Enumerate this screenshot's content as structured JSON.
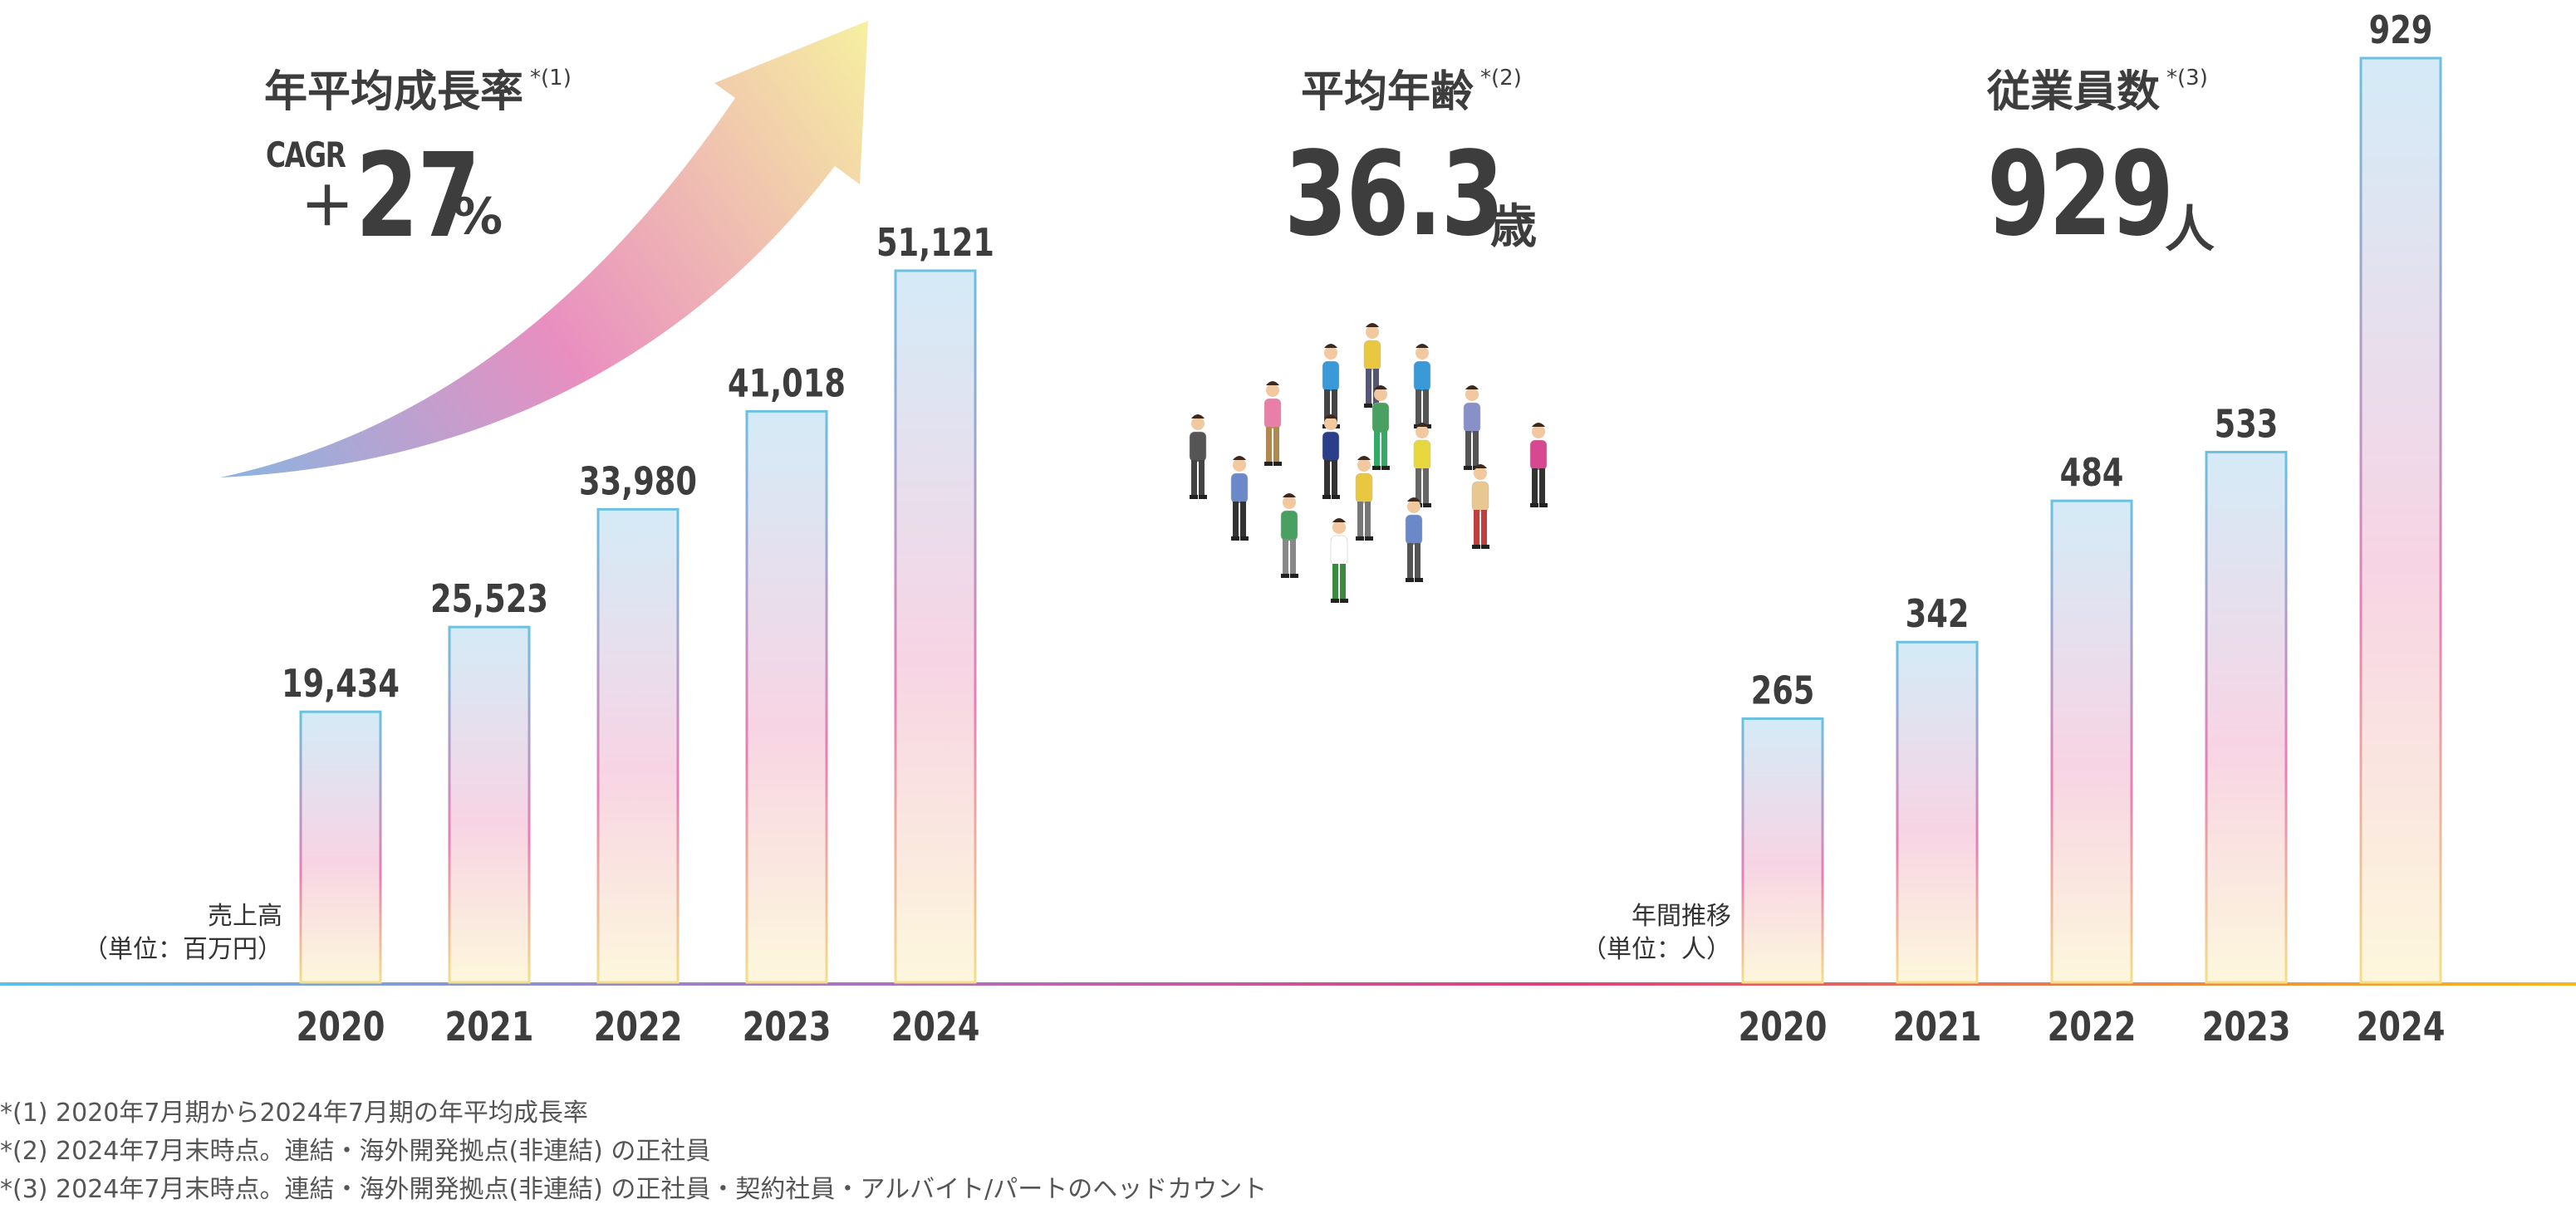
{
  "kpis": {
    "cagr": {
      "title": "年平均成長率",
      "note_ref": "*(1)",
      "prefix": "CAGR",
      "sign": "＋",
      "value": "27",
      "unit": "%"
    },
    "age": {
      "title": "平均年齢",
      "note_ref": "*(2)",
      "value": "36.3",
      "unit": "歳"
    },
    "employees": {
      "title": "従業員数",
      "note_ref": "*(3)",
      "value": "929",
      "unit": "人"
    }
  },
  "chart_data": [
    {
      "type": "bar",
      "name_label": [
        "売上高",
        "（単位：百万円）"
      ],
      "categories": [
        "2020",
        "2021",
        "2022",
        "2023",
        "2024"
      ],
      "values": [
        19434,
        25523,
        33980,
        41018,
        51121
      ],
      "value_labels": [
        "19,434",
        "25,523",
        "33,980",
        "41,018",
        "51,121"
      ]
    },
    {
      "type": "bar",
      "name_label": [
        "年間推移",
        "（単位：人）"
      ],
      "categories": [
        "2020",
        "2021",
        "2022",
        "2023",
        "2024"
      ],
      "values": [
        265,
        342,
        484,
        533,
        929
      ],
      "value_labels": [
        "265",
        "342",
        "484",
        "533",
        "929"
      ]
    }
  ],
  "footnotes": [
    "*(1) 2020年7月期から2024年7月期の年平均成長率",
    "*(2) 2024年7月末時点。連結・海外開発拠点(非連結) の正社員",
    "*(3) 2024年7月末時点。連結・海外開発拠点(非連結) の正社員・契約社員・アルバイト/パートのヘッドカウント"
  ],
  "colors": {
    "text": "#3d3d3d",
    "bar_stroke": "#6cc0e0",
    "bar_top": "#d4ebf7",
    "bar_mid": "#f7d4e4",
    "bar_bottom": "#fdf7dc",
    "arrow_start": "#8ab4e0",
    "arrow_mid": "#e98fc0",
    "arrow_end": "#f6f0a0"
  },
  "illustration": {
    "name": "crowd-of-people-icon"
  }
}
